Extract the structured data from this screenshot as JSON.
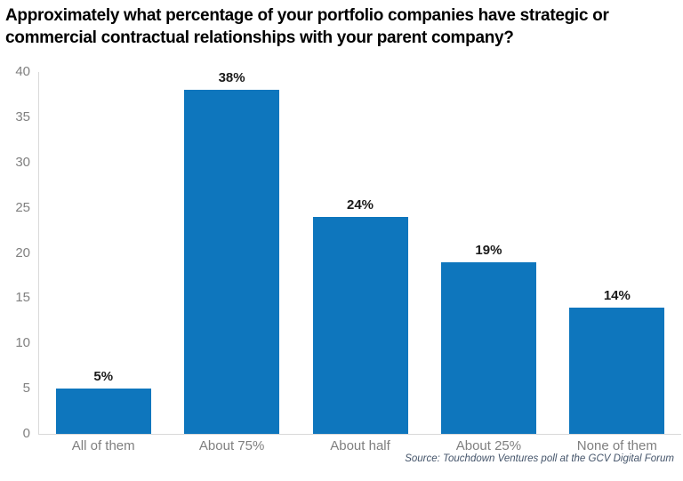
{
  "header": {
    "title_lines": [
      "Approximately what percentage of your portfolio companies have strategic or",
      "commercial contractual relationships with your parent company?"
    ]
  },
  "footer": {
    "source": "Source: Touchdown Ventures poll at the GCV Digital Forum"
  },
  "colors": {
    "bar": "#0e76bd",
    "axis_line": "#d9d9d9",
    "y_tick_label": "#808080",
    "x_tick_label": "#7f7f7f",
    "value_label": "#1a1a1a",
    "title": "#000000",
    "source": "#44546a"
  },
  "chart_data": {
    "type": "bar",
    "title": "Approximately what percentage of your portfolio companies have strategic or commercial contractual relationships with your parent company?",
    "categories": [
      "All of them",
      "About 75%",
      "About half",
      "About 25%",
      "None of them"
    ],
    "values": [
      5,
      38,
      24,
      19,
      14
    ],
    "value_labels": [
      "5%",
      "38%",
      "24%",
      "19%",
      "14%"
    ],
    "xlabel": "",
    "ylabel": "",
    "ylim": [
      0,
      40
    ],
    "yticks": [
      0,
      5,
      10,
      15,
      20,
      25,
      30,
      35,
      40
    ],
    "grid": false,
    "legend": "none",
    "bar_color": "#0e76bd",
    "source": "Source: Touchdown Ventures poll at the GCV Digital Forum"
  }
}
